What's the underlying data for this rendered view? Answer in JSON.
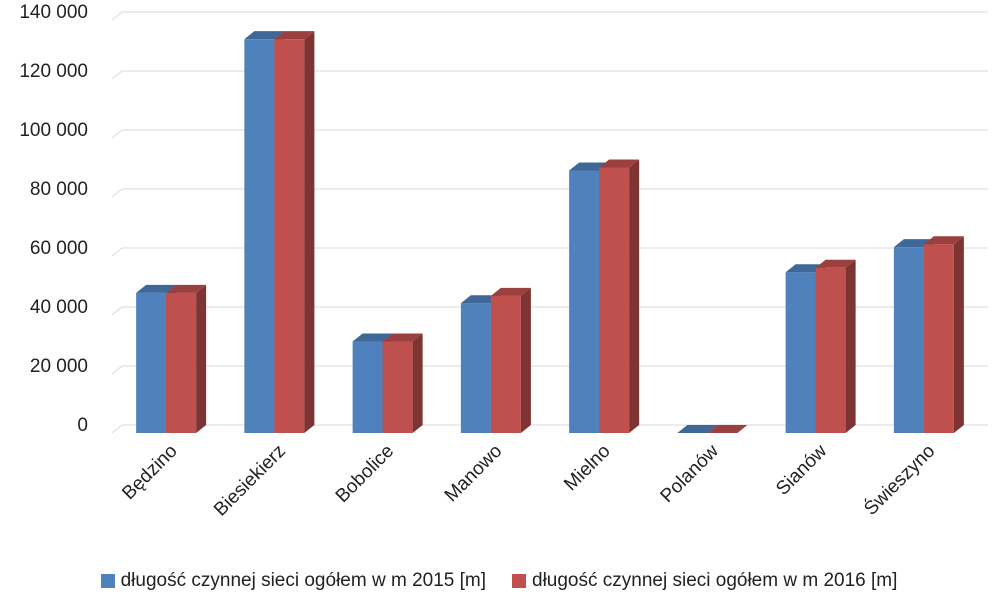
{
  "chart_data": {
    "type": "bar",
    "categories": [
      "Będzino",
      "Biesiekierz",
      "Bobolice",
      "Manowo",
      "Mielno",
      "Polanów",
      "Sianów",
      "Świeszyno"
    ],
    "series": [
      {
        "name": "długość czynnej sieci ogółem w m 2015 [m]",
        "color": "#4f81bd",
        "values": [
          47500,
          133500,
          31000,
          44000,
          89000,
          0,
          54500,
          63000
        ]
      },
      {
        "name": "długość czynnej sieci ogółem w m 2016 [m]",
        "color": "#c0504d",
        "values": [
          47500,
          133500,
          31000,
          46500,
          90000,
          0,
          56000,
          64000
        ]
      }
    ],
    "yticks": [
      "0",
      "20 000",
      "40 000",
      "60 000",
      "80 000",
      "100 000",
      "120 000",
      "140 000"
    ],
    "ylim": [
      0,
      140000
    ],
    "grid": true,
    "legend_position": "bottom"
  }
}
